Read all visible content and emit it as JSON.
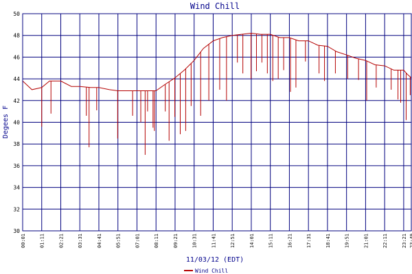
{
  "chart_data": {
    "type": "line",
    "title": "Wind Chill",
    "xlabel": "11/03/12 (EDT)",
    "ylabel": "Degees F",
    "ylim": [
      30,
      50
    ],
    "y_ticks": [
      "30",
      "32",
      "34",
      "36",
      "38",
      "40",
      "42",
      "44",
      "46",
      "48",
      "50"
    ],
    "x_ticks": [
      "00:01",
      "01:11",
      "02:21",
      "03:31",
      "04:41",
      "05:51",
      "07:01",
      "08:11",
      "09:21",
      "10:31",
      "11:41",
      "12:51",
      "14:01",
      "15:11",
      "16:21",
      "17:31",
      "18:41",
      "19:51",
      "21:01",
      "22:11",
      "23:21",
      "23:49"
    ],
    "grid": true,
    "legend_position": "bottom-center",
    "colors": {
      "series": "#b40000",
      "grid": "#00007f",
      "text": "#00008b"
    },
    "series": [
      {
        "name": "Wind Chill",
        "x": [
          "00:01",
          "00:35",
          "01:11",
          "01:40",
          "02:21",
          "03:00",
          "03:31",
          "04:10",
          "04:41",
          "05:20",
          "05:51",
          "06:20",
          "07:01",
          "07:40",
          "08:11",
          "08:45",
          "09:21",
          "09:55",
          "10:31",
          "11:05",
          "11:41",
          "12:15",
          "12:51",
          "13:25",
          "14:01",
          "14:35",
          "15:11",
          "15:45",
          "16:21",
          "16:55",
          "17:31",
          "18:05",
          "18:41",
          "19:15",
          "19:51",
          "20:25",
          "21:01",
          "21:35",
          "22:11",
          "22:45",
          "23:21",
          "23:35",
          "23:49"
        ],
        "values": [
          43.8,
          43.0,
          43.2,
          43.8,
          43.8,
          43.3,
          43.3,
          43.2,
          43.2,
          43.0,
          42.9,
          42.9,
          42.9,
          42.9,
          42.9,
          43.5,
          44.1,
          44.8,
          45.7,
          46.8,
          47.5,
          47.8,
          48.0,
          48.1,
          48.2,
          48.1,
          48.1,
          47.8,
          47.8,
          47.5,
          47.5,
          47.1,
          47.0,
          46.5,
          46.2,
          45.9,
          45.7,
          45.3,
          45.2,
          44.8,
          44.8,
          44.4,
          44.1
        ],
        "drops": [
          [
            "01:11",
            39.6
          ],
          [
            "01:45",
            40.8
          ],
          [
            "03:55",
            40.6
          ],
          [
            "04:05",
            37.7
          ],
          [
            "04:33",
            41.1
          ],
          [
            "05:50",
            38.5
          ],
          [
            "06:45",
            40.6
          ],
          [
            "07:15",
            40.0
          ],
          [
            "07:31",
            37.0
          ],
          [
            "07:40",
            41.0
          ],
          [
            "08:00",
            39.5
          ],
          [
            "08:05",
            39.2
          ],
          [
            "08:45",
            41.0
          ],
          [
            "08:59",
            38.3
          ],
          [
            "09:20",
            40.5
          ],
          [
            "09:40",
            38.9
          ],
          [
            "10:00",
            39.2
          ],
          [
            "10:20",
            41.5
          ],
          [
            "10:55",
            40.6
          ],
          [
            "11:25",
            42.0
          ],
          [
            "12:05",
            43.0
          ],
          [
            "12:30",
            42.0
          ],
          [
            "13:10",
            45.5
          ],
          [
            "13:30",
            44.5
          ],
          [
            "14:00",
            44.0
          ],
          [
            "14:20",
            44.7
          ],
          [
            "14:40",
            45.5
          ],
          [
            "15:00",
            44.5
          ],
          [
            "15:20",
            43.8
          ],
          [
            "15:40",
            44.0
          ],
          [
            "16:00",
            44.8
          ],
          [
            "16:25",
            42.8
          ],
          [
            "16:45",
            43.2
          ],
          [
            "17:20",
            45.6
          ],
          [
            "18:10",
            44.5
          ],
          [
            "18:30",
            43.8
          ],
          [
            "19:10",
            44.5
          ],
          [
            "19:55",
            44.0
          ],
          [
            "20:35",
            43.9
          ],
          [
            "21:05",
            42.0
          ],
          [
            "21:40",
            43.2
          ],
          [
            "22:35",
            43.0
          ],
          [
            "23:00",
            42.1
          ],
          [
            "23:10",
            41.8
          ],
          [
            "23:30",
            40.2
          ],
          [
            "23:45",
            42.5
          ]
        ]
      }
    ]
  }
}
